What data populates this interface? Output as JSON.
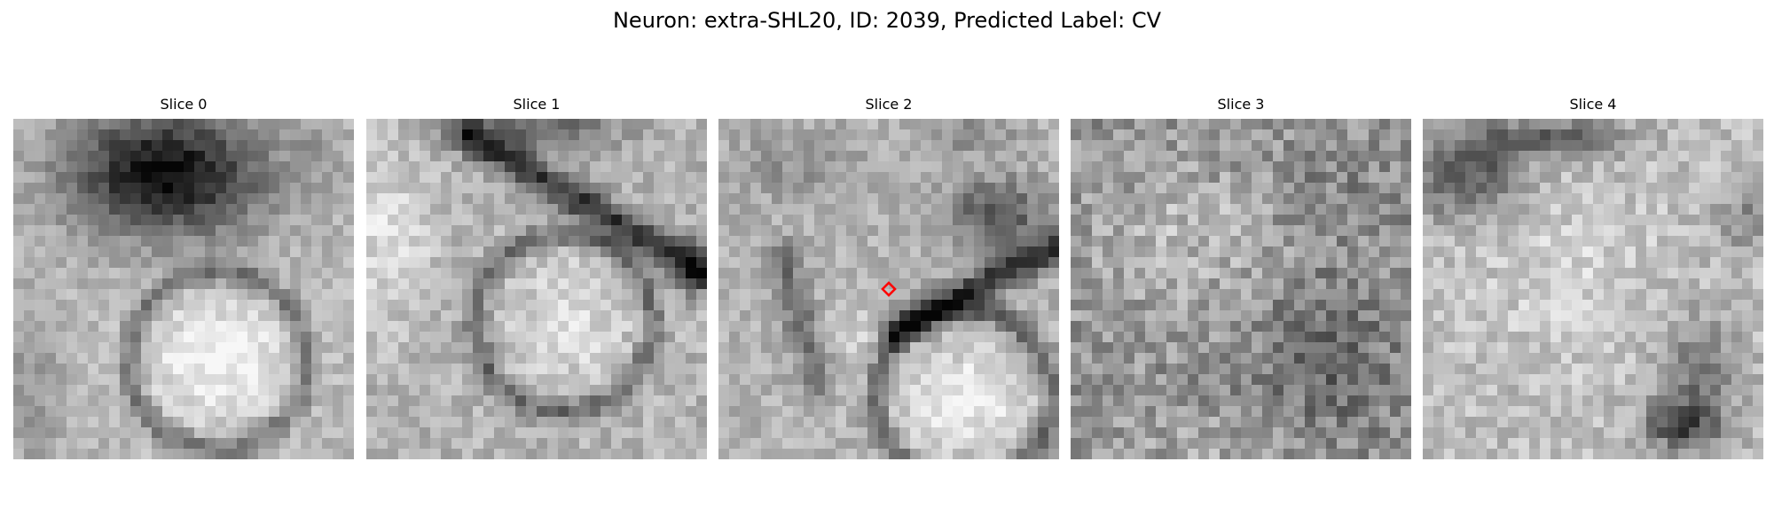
{
  "figure": {
    "title": "Neuron: extra-SHL20, ID: 2039, Predicted Label: CV"
  },
  "slices": [
    {
      "title": "Slice 0"
    },
    {
      "title": "Slice 1"
    },
    {
      "title": "Slice 2",
      "marker": "red-diamond-marker"
    },
    {
      "title": "Slice 3"
    },
    {
      "title": "Slice 4"
    }
  ],
  "colors": {
    "colormap": "gray",
    "marker": "#ff0000"
  }
}
